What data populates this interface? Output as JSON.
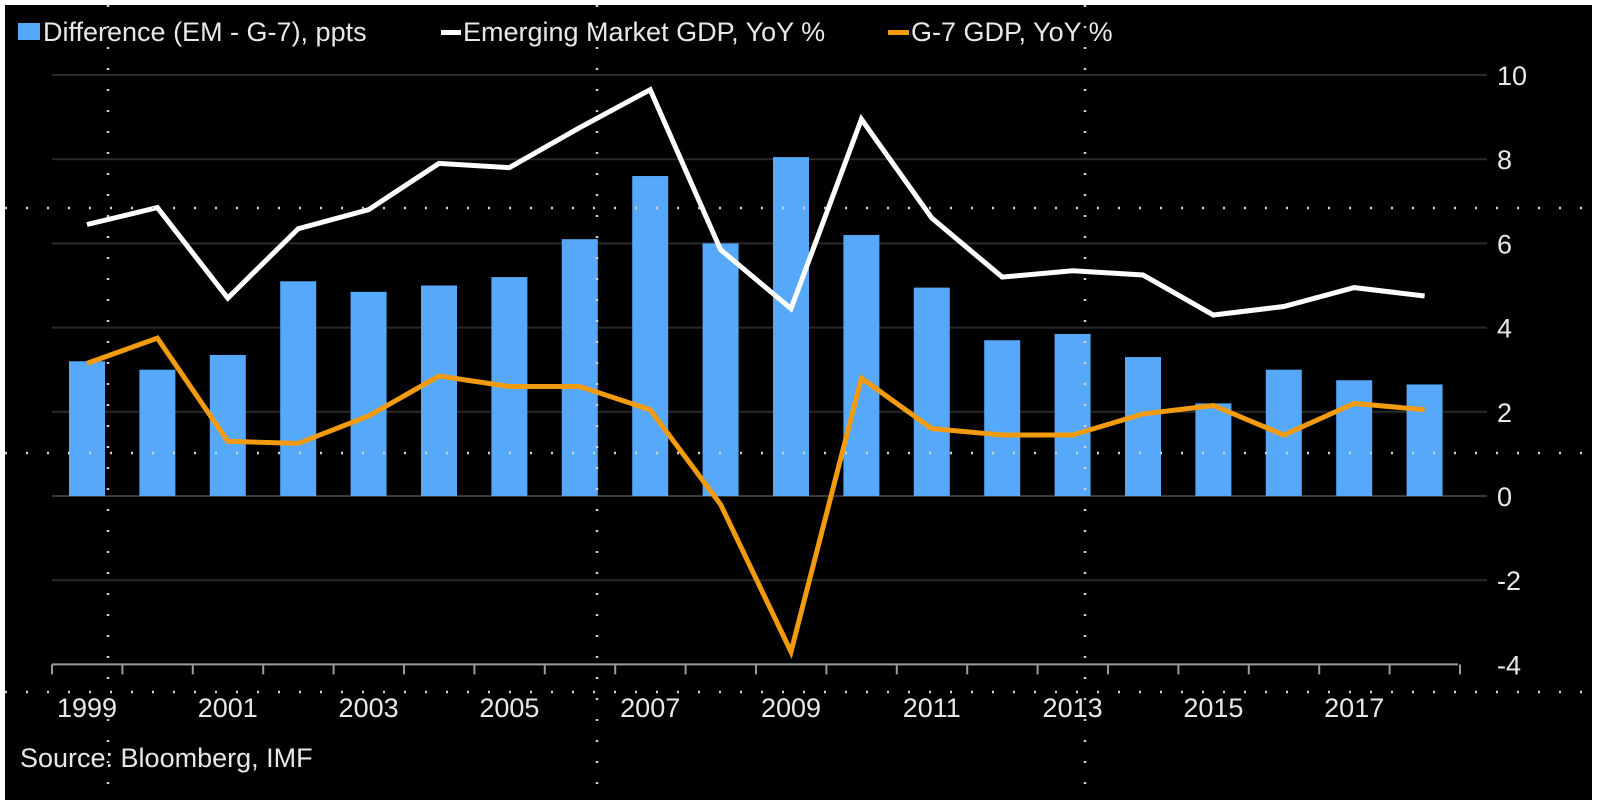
{
  "chart_data": {
    "type": "bar",
    "title": "",
    "xlabel": "",
    "ylabel": "",
    "ylim": [
      -4,
      10
    ],
    "yticks": [
      10,
      8,
      6,
      4,
      2,
      0,
      -2,
      -4
    ],
    "y_axis_side": "right",
    "grid": true,
    "legend_position": "top-left",
    "categories": [
      1999,
      2000,
      2001,
      2002,
      2003,
      2004,
      2005,
      2006,
      2007,
      2008,
      2009,
      2010,
      2011,
      2012,
      2013,
      2014,
      2015,
      2016,
      2017,
      2018
    ],
    "xtick_labels": [
      "1999",
      "2001",
      "2003",
      "2005",
      "2007",
      "2009",
      "2011",
      "2013",
      "2015",
      "2017"
    ],
    "series": [
      {
        "name": "Difference (EM - G-7), ppts",
        "kind": "bar",
        "color": "#56a8fb",
        "values": [
          3.2,
          3.0,
          3.35,
          5.1,
          4.85,
          5.0,
          5.2,
          6.1,
          7.6,
          6.0,
          8.05,
          6.2,
          4.95,
          3.7,
          3.85,
          3.3,
          2.2,
          3.0,
          2.75,
          2.65
        ]
      },
      {
        "name": "Emerging Market GDP, YoY %",
        "kind": "line",
        "color": "#ffffff",
        "values": [
          6.45,
          6.85,
          4.7,
          6.35,
          6.8,
          7.9,
          7.8,
          8.75,
          9.65,
          5.85,
          4.45,
          8.95,
          6.6,
          5.2,
          5.35,
          5.25,
          4.3,
          4.5,
          4.95,
          4.75
        ]
      },
      {
        "name": "G-7 GDP, YoY %",
        "kind": "line",
        "color": "#f39b0e",
        "values": [
          3.15,
          3.75,
          1.3,
          1.25,
          1.9,
          2.85,
          2.6,
          2.6,
          2.05,
          -0.2,
          -3.7,
          2.8,
          1.6,
          1.45,
          1.45,
          1.95,
          2.15,
          1.45,
          2.2,
          2.05
        ]
      }
    ],
    "source": "Source: Bloomberg, IMF"
  },
  "colors": {
    "background": "#000000",
    "text": "#e8e8e8",
    "gridline": "#2a2a2a",
    "axis": "#9a9a9a"
  }
}
